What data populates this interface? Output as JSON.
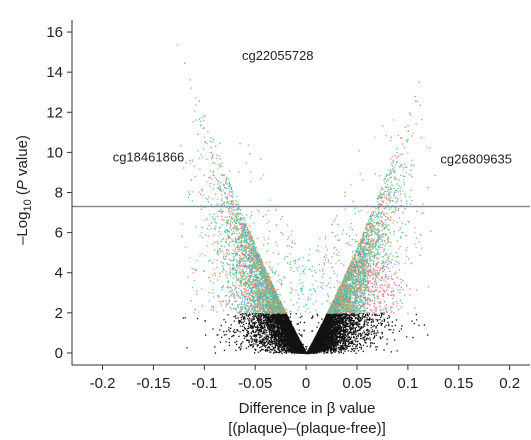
{
  "chart_data": {
    "type": "scatter",
    "title": "",
    "xlabel": "Difference in β value",
    "xlabel_line2": "[(plaque)–(plaque-free)]",
    "ylabel_prefix": "–Log",
    "ylabel_sub": "10",
    "ylabel_paren_open": " (",
    "ylabel_italic": "P",
    "ylabel_suffix": " value)",
    "xlim": [
      -0.23,
      0.22
    ],
    "ylim": [
      -0.6,
      16.6
    ],
    "xticks": [
      -0.2,
      -0.15,
      -0.1,
      -0.05,
      0,
      0.05,
      0.1,
      0.15,
      0.2
    ],
    "xtick_labels": [
      "-0.2",
      "-0.15",
      "-0.1",
      "-0.05",
      "0",
      "0.05",
      "0.1",
      "0.15",
      "0.2"
    ],
    "yticks": [
      0,
      2,
      4,
      6,
      8,
      10,
      12,
      14,
      16
    ],
    "ytick_labels": [
      "0",
      "2",
      "4",
      "6",
      "8",
      "10",
      "12",
      "14",
      "16"
    ],
    "significance_threshold": 7.3,
    "grid": false,
    "legend": "none",
    "colors": {
      "nonsignificant": "#111111",
      "threshold_line": "#7f8c99",
      "cyan": "#3cc4b4",
      "green": "#5fb24e",
      "orange": "#d9a05a",
      "pink": "#f06a7a",
      "blue": "#5a8fd0"
    },
    "annotations": [
      {
        "text": "cg22055728",
        "x": -0.063,
        "y": 14.6
      },
      {
        "text": "cg18461866",
        "x": -0.19,
        "y": 9.55
      },
      {
        "text": "cg26809635",
        "x": 0.132,
        "y": 9.45
      }
    ]
  }
}
